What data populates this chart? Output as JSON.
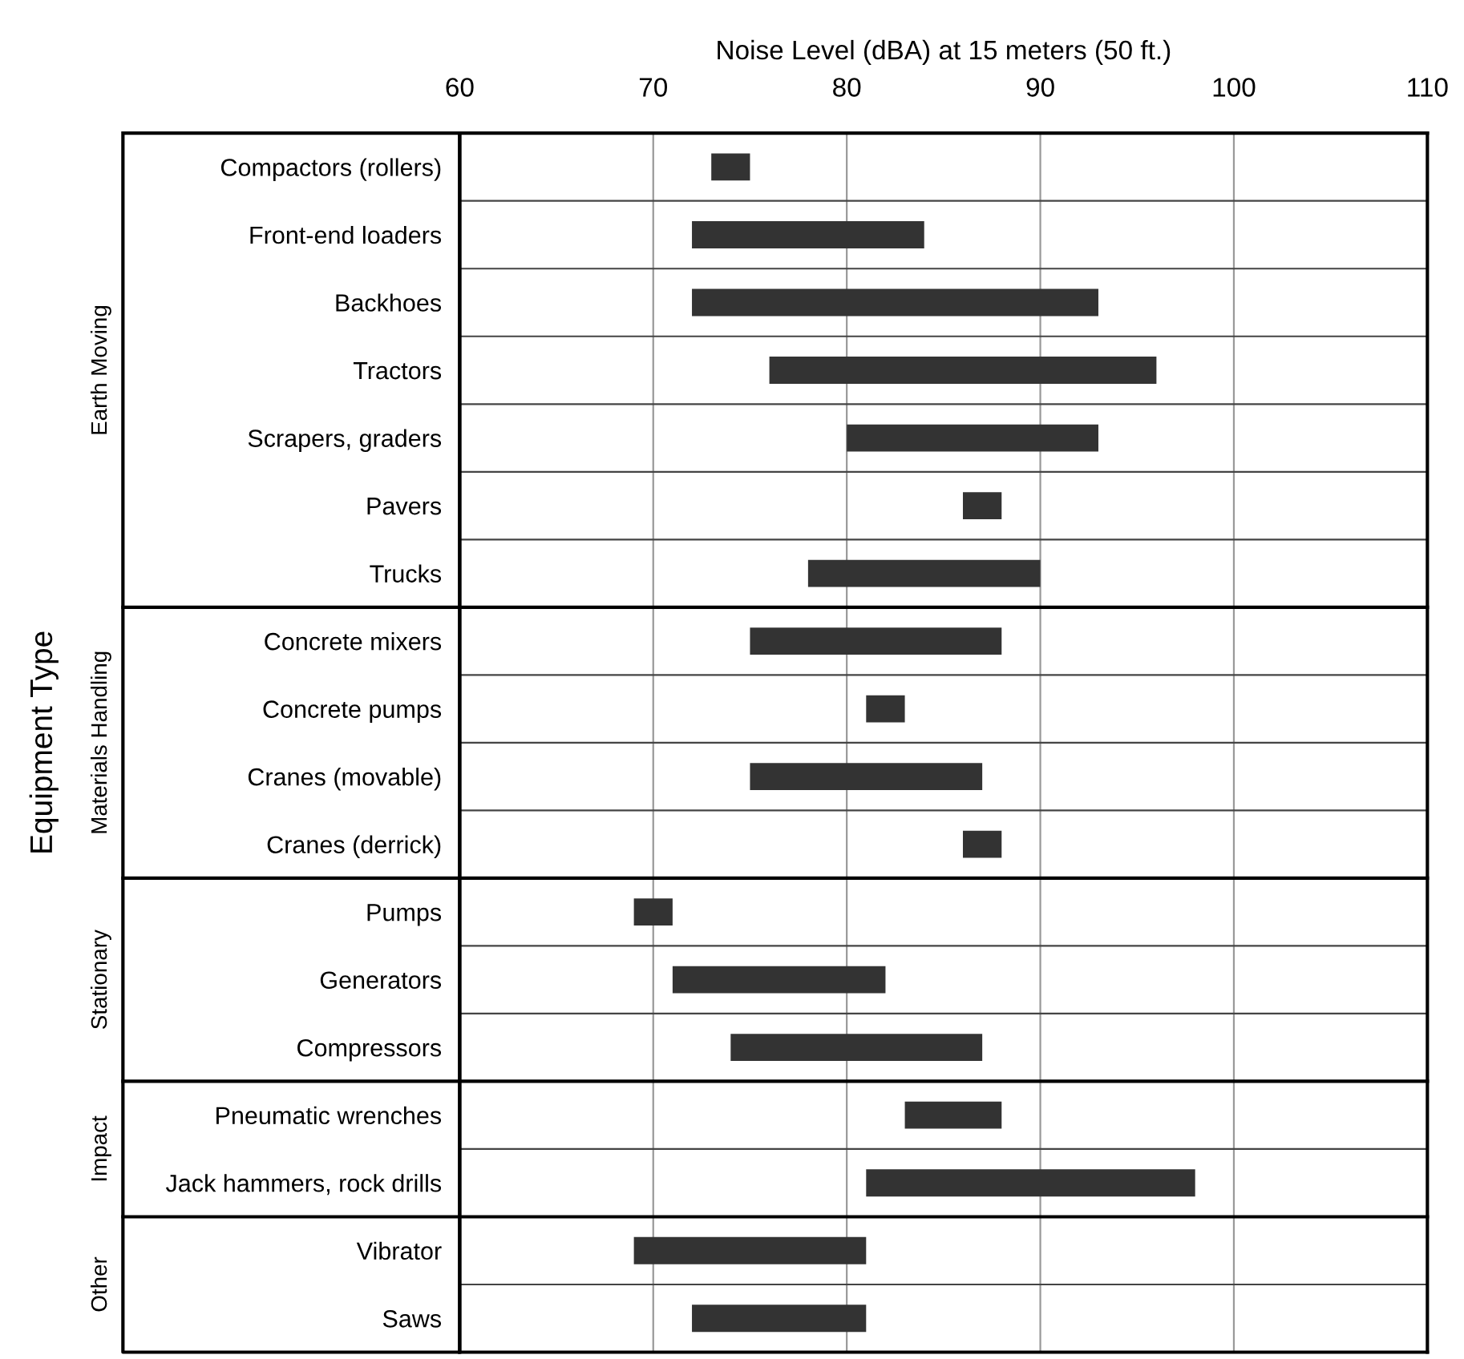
{
  "chart_data": {
    "type": "bar",
    "orientation": "horizontal",
    "xlabel": "Noise Level (dBA) at 15 meters (50 ft.)",
    "ylabel": "Equipment Type",
    "categories": [
      "Compactors (rollers)",
      "Front-end loaders",
      "Backhoes",
      "Tractors",
      "Scrapers, graders",
      "Pavers",
      "Trucks",
      "Concrete mixers",
      "Concrete pumps",
      "Cranes (movable)",
      "Cranes (derrick)",
      "Pumps",
      "Generators",
      "Compressors",
      "Pneumatic wrenches",
      "Jack hammers, rock drills",
      "Vibrator",
      "Saws"
    ],
    "base": [
      73,
      72,
      72,
      76,
      80,
      86,
      78,
      75,
      81,
      75,
      86,
      69,
      71,
      74,
      83,
      81,
      69,
      72
    ],
    "values": [
      2,
      12,
      21,
      20,
      13,
      2,
      12,
      13,
      2,
      12,
      2,
      2,
      11,
      13,
      5,
      17,
      12,
      9
    ],
    "color": "#333333",
    "xlim": [
      60,
      110
    ],
    "xticks": [
      60,
      70,
      80,
      90,
      100,
      110
    ],
    "grid": true,
    "annotations": [
      "Earth Moving",
      "Materials Handling",
      "Stationary",
      "Impact",
      "Other"
    ]
  }
}
